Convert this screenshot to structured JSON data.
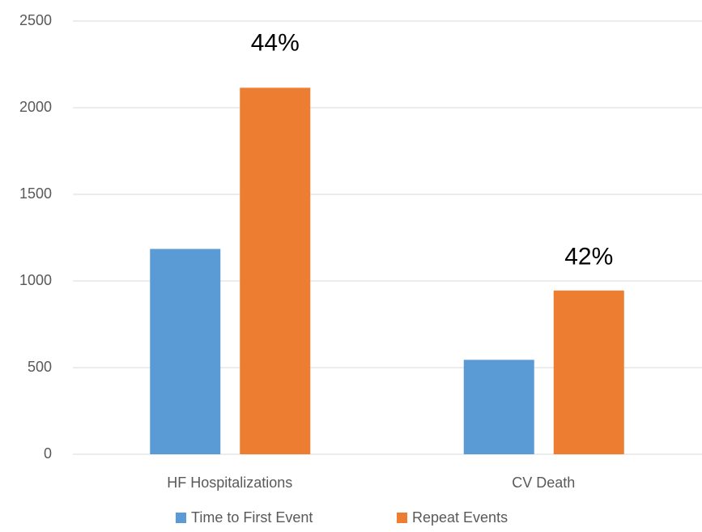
{
  "chart_data": {
    "type": "bar",
    "categories": [
      "HF Hospitalizations",
      "CV Death"
    ],
    "series": [
      {
        "name": "Time to First Event",
        "color": "#5b9bd5",
        "values": [
          1185,
          545
        ]
      },
      {
        "name": "Repeat Events",
        "color": "#ed7d31",
        "values": [
          2115,
          945
        ]
      }
    ],
    "annotations": [
      "44%",
      "42%"
    ],
    "ylim": [
      0,
      2500
    ],
    "yticks": [
      0,
      500,
      1000,
      1500,
      2000,
      2500
    ],
    "grid": true,
    "legend": "bottom"
  }
}
